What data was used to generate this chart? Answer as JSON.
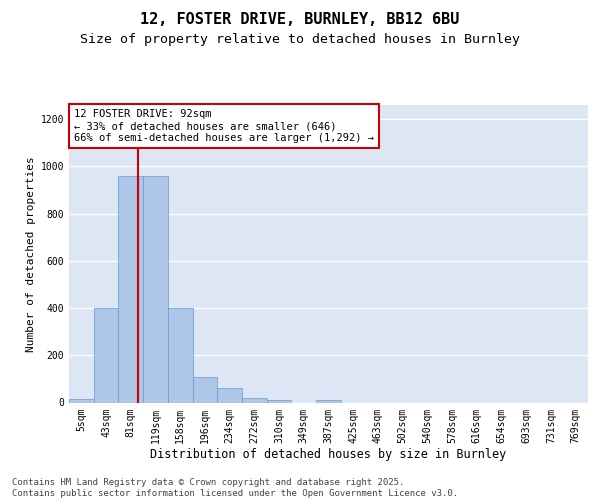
{
  "title_line1": "12, FOSTER DRIVE, BURNLEY, BB12 6BU",
  "title_line2": "Size of property relative to detached houses in Burnley",
  "xlabel": "Distribution of detached houses by size in Burnley",
  "ylabel": "Number of detached properties",
  "categories": [
    "5sqm",
    "43sqm",
    "81sqm",
    "119sqm",
    "158sqm",
    "196sqm",
    "234sqm",
    "272sqm",
    "310sqm",
    "349sqm",
    "387sqm",
    "425sqm",
    "463sqm",
    "502sqm",
    "540sqm",
    "578sqm",
    "616sqm",
    "654sqm",
    "693sqm",
    "731sqm",
    "769sqm"
  ],
  "values": [
    15,
    400,
    960,
    960,
    400,
    110,
    62,
    20,
    10,
    0,
    10,
    0,
    0,
    0,
    0,
    0,
    0,
    0,
    0,
    0,
    0
  ],
  "bar_color": "#aec6e8",
  "bar_edge_color": "#6699cc",
  "annotation_box_text": "12 FOSTER DRIVE: 92sqm\n← 33% of detached houses are smaller (646)\n66% of semi-detached houses are larger (1,292) →",
  "annotation_box_color": "#ffffff",
  "annotation_box_edge_color": "#cc0000",
  "vline_color": "#cc0000",
  "ylim": [
    0,
    1260
  ],
  "yticks": [
    0,
    200,
    400,
    600,
    800,
    1000,
    1200
  ],
  "background_color": "#dce6f5",
  "grid_color": "#ffffff",
  "footer_text": "Contains HM Land Registry data © Crown copyright and database right 2025.\nContains public sector information licensed under the Open Government Licence v3.0.",
  "title_fontsize": 11,
  "subtitle_fontsize": 9.5,
  "annotation_fontsize": 7.5,
  "footer_fontsize": 6.5,
  "ylabel_fontsize": 8,
  "xlabel_fontsize": 8.5,
  "tick_fontsize": 7
}
